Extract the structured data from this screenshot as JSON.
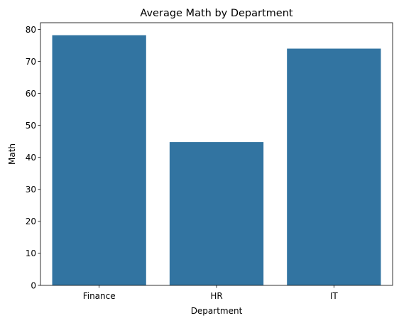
{
  "chart_data": {
    "type": "bar",
    "title": "Average Math by Department",
    "xlabel": "Department",
    "ylabel": "Math",
    "categories": [
      "Finance",
      "HR",
      "IT"
    ],
    "values": [
      78.2,
      44.8,
      74.0
    ],
    "ylim": [
      0,
      82.1
    ],
    "yticks": [
      0,
      10,
      20,
      30,
      40,
      50,
      60,
      70,
      80
    ],
    "grid": false,
    "legend": "none",
    "bar_color": "#3274a1"
  }
}
